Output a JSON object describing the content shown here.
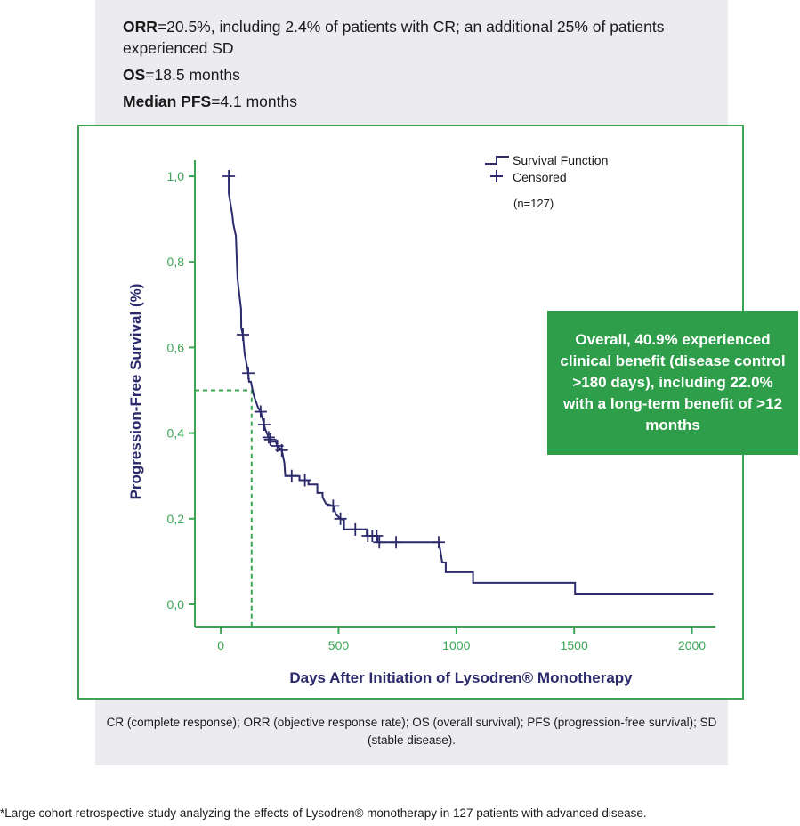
{
  "header": {
    "line1_bold": "ORR",
    "line1": "=20.5%, including 2.4% of patients with CR; an additional 25% of patients experienced SD",
    "line2_bold": "OS",
    "line2": "=18.5 months",
    "line3_bold": "Median PFS",
    "line3": "=4.1 months"
  },
  "callout": "Overall, 40.9% experienced clinical benefit (disease control >180 days), including 22.0% with a long-term benefit of >12 months",
  "footer": "CR (complete response); ORR (objective response rate); OS (overall survival); PFS (progression-free survival); SD (stable disease).",
  "footnote": "*Large cohort retrospective study analyzing the effects of Lysodren® monotherapy in 127 patients with advanced disease.",
  "colors": {
    "navy": "#2b2a6b",
    "green": "#3aa655",
    "callout": "#2e9e4a",
    "panel": "#ebebf0"
  },
  "chart_data": {
    "type": "line",
    "subtype": "kaplan-meier step",
    "xlabel": "Days After Initiation of Lysodren® Monotherapy",
    "ylabel": "Progression-Free Survival (%)",
    "xlim": [
      -110,
      2100
    ],
    "ylim": [
      -0.052,
      1.0
    ],
    "xticks": [
      0,
      500,
      1000,
      1500,
      2000
    ],
    "xtick_labels": [
      "0",
      "500",
      "1000",
      "1500",
      "2000"
    ],
    "yticks": [
      0,
      0.2,
      0.4,
      0.6,
      0.8,
      1.0
    ],
    "ytick_labels": [
      "0,0",
      "0,2",
      "0,4",
      "0,6",
      "0,8",
      "1,0"
    ],
    "legend": {
      "position": "top-right",
      "entries": [
        "Survival Function",
        "Censored"
      ],
      "note": "(n=127)"
    },
    "median_marker": {
      "x": 131,
      "y": 0.5
    },
    "series": [
      {
        "name": "Survival Function",
        "points": [
          [
            34,
            1.0
          ],
          [
            34,
            0.96
          ],
          [
            49,
            0.91
          ],
          [
            53,
            0.89
          ],
          [
            64,
            0.86
          ],
          [
            71,
            0.76
          ],
          [
            86,
            0.69
          ],
          [
            87,
            0.645
          ],
          [
            94,
            0.63
          ],
          [
            101,
            0.585
          ],
          [
            117,
            0.54
          ],
          [
            120,
            0.52
          ],
          [
            128,
            0.52
          ],
          [
            139,
            0.49
          ],
          [
            158,
            0.46
          ],
          [
            169,
            0.45
          ],
          [
            184,
            0.42
          ],
          [
            188,
            0.41
          ],
          [
            203,
            0.39
          ],
          [
            206,
            0.38
          ],
          [
            233,
            0.38
          ],
          [
            240,
            0.37
          ],
          [
            259,
            0.36
          ],
          [
            270,
            0.33
          ],
          [
            274,
            0.3
          ],
          [
            334,
            0.3
          ],
          [
            334,
            0.29
          ],
          [
            372,
            0.29
          ],
          [
            372,
            0.28
          ],
          [
            410,
            0.28
          ],
          [
            410,
            0.26
          ],
          [
            432,
            0.26
          ],
          [
            432,
            0.25
          ],
          [
            447,
            0.235
          ],
          [
            477,
            0.23
          ],
          [
            489,
            0.21
          ],
          [
            508,
            0.2
          ],
          [
            523,
            0.197
          ],
          [
            523,
            0.175
          ],
          [
            620,
            0.175
          ],
          [
            620,
            0.16
          ],
          [
            665,
            0.16
          ],
          [
            665,
            0.145
          ],
          [
            925,
            0.145
          ],
          [
            932,
            0.127
          ],
          [
            940,
            0.098
          ],
          [
            955,
            0.098
          ],
          [
            955,
            0.075
          ],
          [
            1071,
            0.075
          ],
          [
            1071,
            0.05
          ],
          [
            1504,
            0.05
          ],
          [
            1504,
            0.025
          ],
          [
            2090,
            0.025
          ]
        ]
      }
    ],
    "censored": [
      [
        34,
        1.0
      ],
      [
        94,
        0.63
      ],
      [
        117,
        0.54
      ],
      [
        169,
        0.45
      ],
      [
        184,
        0.42
      ],
      [
        203,
        0.39
      ],
      [
        210,
        0.385
      ],
      [
        240,
        0.37
      ],
      [
        259,
        0.36
      ],
      [
        301,
        0.3
      ],
      [
        357,
        0.29
      ],
      [
        477,
        0.23
      ],
      [
        508,
        0.2
      ],
      [
        571,
        0.175
      ],
      [
        624,
        0.16
      ],
      [
        643,
        0.16
      ],
      [
        662,
        0.16
      ],
      [
        673,
        0.145
      ],
      [
        744,
        0.145
      ],
      [
        925,
        0.145
      ]
    ]
  }
}
